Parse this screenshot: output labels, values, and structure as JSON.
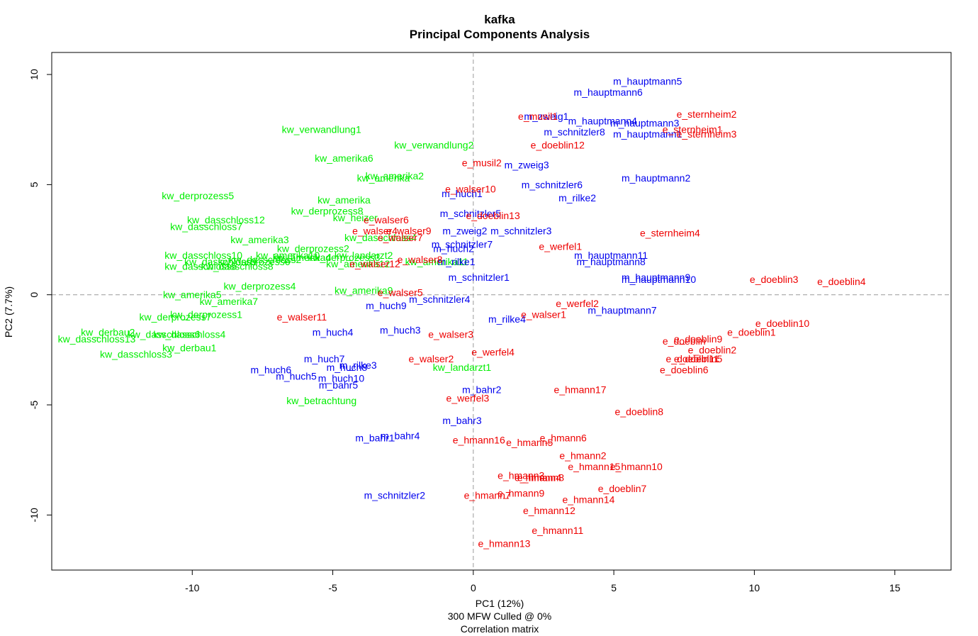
{
  "chart_data": {
    "type": "scatter",
    "title": "kafka",
    "subtitle": "Principal Components Analysis",
    "xlabel": "PC1 (12%)",
    "ylabel": "PC2 (7.7%)",
    "footnotes": [
      "300 MFW  Culled @ 0%",
      "Correlation matrix"
    ],
    "xlim": [
      -15,
      17
    ],
    "ylim": [
      -12.5,
      11
    ],
    "xticks": [
      -10,
      -5,
      0,
      5,
      10,
      15
    ],
    "yticks": [
      -10,
      -5,
      0,
      5,
      10
    ],
    "reference_lines": {
      "x": 0,
      "y": 0,
      "style": "dashed",
      "color": "#999999"
    },
    "grid": false,
    "legend": "none",
    "series": [
      {
        "group": "kw",
        "color": "#00ee00",
        "points": [
          {
            "label": "kw_verwandlung1",
            "x": -5.4,
            "y": 7.5
          },
          {
            "label": "kw_verwandlung2",
            "x": -1.4,
            "y": 6.8
          },
          {
            "label": "kw_amerika6",
            "x": -4.6,
            "y": 6.2
          },
          {
            "label": "kw_amerika2",
            "x": -2.8,
            "y": 5.4
          },
          {
            "label": "kw_amerika",
            "x": -3.2,
            "y": 5.3
          },
          {
            "label": "kw_derprozess5",
            "x": -9.8,
            "y": 4.5
          },
          {
            "label": "kw_amerika",
            "x": -4.6,
            "y": 4.3
          },
          {
            "label": "kw_derprozess8",
            "x": -5.2,
            "y": 3.8
          },
          {
            "label": "kw_heizer",
            "x": -4.2,
            "y": 3.5
          },
          {
            "label": "kw_dasschloss12",
            "x": -8.8,
            "y": 3.4
          },
          {
            "label": "kw_dasschloss7",
            "x": -9.5,
            "y": 3.1
          },
          {
            "label": "kw_dasschloss4",
            "x": -3.3,
            "y": 2.6
          },
          {
            "label": "kw_amerika3",
            "x": -7.6,
            "y": 2.5
          },
          {
            "label": "kw_derprozess2",
            "x": -5.7,
            "y": 2.1
          },
          {
            "label": "kw_landarzt2",
            "x": -3.9,
            "y": 1.8
          },
          {
            "label": "kw_dasschloss10",
            "x": -9.6,
            "y": 1.8
          },
          {
            "label": "kw_amerika10",
            "x": -6.6,
            "y": 1.8
          },
          {
            "label": "kw_derprozess3",
            "x": -4.6,
            "y": 1.7
          },
          {
            "label": "kw_dasschloss2",
            "x": -7.4,
            "y": 1.6
          },
          {
            "label": "kw_derprozess6",
            "x": -7.8,
            "y": 1.5
          },
          {
            "label": "kw_dasschloss9",
            "x": -9.0,
            "y": 1.5
          },
          {
            "label": "kw_amerika12",
            "x": -4.1,
            "y": 1.4
          },
          {
            "label": "kw_dasschloss5",
            "x": -9.7,
            "y": 1.3
          },
          {
            "label": "kw_dasschloss8",
            "x": -8.4,
            "y": 1.3
          },
          {
            "label": "kw_derprozess4",
            "x": -7.6,
            "y": 0.4
          },
          {
            "label": "kw_amerika9",
            "x": -3.9,
            "y": 0.2
          },
          {
            "label": "kw_amerika5",
            "x": -10.0,
            "y": 0.0
          },
          {
            "label": "kw_amerika7",
            "x": -8.7,
            "y": -0.3
          },
          {
            "label": "kw_derprozess1",
            "x": -9.5,
            "y": -0.9
          },
          {
            "label": "kw_derprozess7",
            "x": -10.6,
            "y": -1.0
          },
          {
            "label": "kw_derbau2",
            "x": -13.0,
            "y": -1.7
          },
          {
            "label": "kw_dasschloss6",
            "x": -11.0,
            "y": -1.8
          },
          {
            "label": "kw_dasschloss4",
            "x": -10.1,
            "y": -1.8
          },
          {
            "label": "kw_dasschloss13",
            "x": -13.4,
            "y": -2.0
          },
          {
            "label": "kw_derbau1",
            "x": -10.1,
            "y": -2.4
          },
          {
            "label": "kw_dasschloss3",
            "x": -12.0,
            "y": -2.7
          },
          {
            "label": "kw_landarzt1",
            "x": -0.4,
            "y": -3.3
          },
          {
            "label": "kw_betrachtung",
            "x": -5.4,
            "y": -4.8
          },
          {
            "label": "kw_amerika11",
            "x": -1.3,
            "y": 1.5
          },
          {
            "label": "kw_amerika4",
            "x": -6.1,
            "y": 1.7
          }
        ]
      },
      {
        "group": "m",
        "color": "#0000ee",
        "points": [
          {
            "label": "m_hauptmann5",
            "x": 6.2,
            "y": 9.7
          },
          {
            "label": "m_hauptmann6",
            "x": 4.8,
            "y": 9.2
          },
          {
            "label": "m_zweig1",
            "x": 2.6,
            "y": 8.1
          },
          {
            "label": "m_hauptmann4",
            "x": 4.6,
            "y": 7.9
          },
          {
            "label": "m_hauptmann3",
            "x": 6.1,
            "y": 7.8
          },
          {
            "label": "m_schnitzler8",
            "x": 3.6,
            "y": 7.4
          },
          {
            "label": "m_hauptmann1",
            "x": 6.2,
            "y": 7.3
          },
          {
            "label": "m_zweig3",
            "x": 1.9,
            "y": 5.9
          },
          {
            "label": "m_hauptmann2",
            "x": 6.5,
            "y": 5.3
          },
          {
            "label": "m_schnitzler6",
            "x": 2.8,
            "y": 5.0
          },
          {
            "label": "m_huch1",
            "x": -0.4,
            "y": 4.6
          },
          {
            "label": "m_rilke2",
            "x": 3.7,
            "y": 4.4
          },
          {
            "label": "m_schnitzler5",
            "x": -0.1,
            "y": 3.7
          },
          {
            "label": "m_zweig2",
            "x": -0.3,
            "y": 2.9
          },
          {
            "label": "m_schnitzler3",
            "x": 1.7,
            "y": 2.9
          },
          {
            "label": "m_schnitzler7",
            "x": -0.4,
            "y": 2.3
          },
          {
            "label": "m_huch2",
            "x": -0.7,
            "y": 2.1
          },
          {
            "label": "m_hauptmann11",
            "x": 4.9,
            "y": 1.8
          },
          {
            "label": "m_rilke1",
            "x": -0.6,
            "y": 1.5
          },
          {
            "label": "m_hauptmann8",
            "x": 4.9,
            "y": 1.5
          },
          {
            "label": "m_schnitzler1",
            "x": 0.2,
            "y": 0.8
          },
          {
            "label": "m_hauptmann9",
            "x": 6.5,
            "y": 0.8
          },
          {
            "label": "m_hauptmann10",
            "x": 6.6,
            "y": 0.7
          },
          {
            "label": "m_schnitzler4",
            "x": -1.2,
            "y": -0.2
          },
          {
            "label": "m_huch9",
            "x": -3.1,
            "y": -0.5
          },
          {
            "label": "m_hauptmann7",
            "x": 5.3,
            "y": -0.7
          },
          {
            "label": "m_rilke4",
            "x": 1.2,
            "y": -1.1
          },
          {
            "label": "m_huch3",
            "x": -2.6,
            "y": -1.6
          },
          {
            "label": "m_huch4",
            "x": -5.0,
            "y": -1.7
          },
          {
            "label": "m_huch7",
            "x": -5.3,
            "y": -2.9
          },
          {
            "label": "m_rilke3",
            "x": -4.1,
            "y": -3.2
          },
          {
            "label": "m_huch8",
            "x": -4.5,
            "y": -3.3
          },
          {
            "label": "m_huch6",
            "x": -7.2,
            "y": -3.4
          },
          {
            "label": "m_huch5",
            "x": -6.3,
            "y": -3.7
          },
          {
            "label": "m_huch10",
            "x": -4.7,
            "y": -3.8
          },
          {
            "label": "m_bahr5",
            "x": -4.8,
            "y": -4.1
          },
          {
            "label": "m_bahr2",
            "x": 0.3,
            "y": -4.3
          },
          {
            "label": "m_bahr3",
            "x": -0.4,
            "y": -5.7
          },
          {
            "label": "m_bahr1",
            "x": -3.5,
            "y": -6.5
          },
          {
            "label": "m_bahr4",
            "x": -2.6,
            "y": -6.4
          },
          {
            "label": "m_schnitzler2",
            "x": -2.8,
            "y": -9.1
          }
        ]
      },
      {
        "group": "e",
        "color": "#ee0000",
        "points": [
          {
            "label": "e_sternheim2",
            "x": 8.3,
            "y": 8.2
          },
          {
            "label": "e_musil1",
            "x": 2.3,
            "y": 8.1
          },
          {
            "label": "e_sternheim1",
            "x": 7.8,
            "y": 7.5
          },
          {
            "label": "e_sternheim3",
            "x": 8.3,
            "y": 7.3
          },
          {
            "label": "e_doeblin12",
            "x": 3.0,
            "y": 6.8
          },
          {
            "label": "e_musil2",
            "x": 0.3,
            "y": 6.0
          },
          {
            "label": "e_walser10",
            "x": -0.1,
            "y": 4.8
          },
          {
            "label": "e_doeblin13",
            "x": 0.7,
            "y": 3.6
          },
          {
            "label": "e_walser6",
            "x": -3.1,
            "y": 3.4
          },
          {
            "label": "e_sternheim4",
            "x": 7.0,
            "y": 2.8
          },
          {
            "label": "e_walser4",
            "x": -3.5,
            "y": 2.9
          },
          {
            "label": "e_walser9",
            "x": -2.3,
            "y": 2.9
          },
          {
            "label": "e_walser7",
            "x": -2.6,
            "y": 2.6
          },
          {
            "label": "e_werfel1",
            "x": 3.1,
            "y": 2.2
          },
          {
            "label": "e_walser8",
            "x": -1.9,
            "y": 1.6
          },
          {
            "label": "e_walser12",
            "x": -3.5,
            "y": 1.4
          },
          {
            "label": "e_doeblin3",
            "x": 10.7,
            "y": 0.7
          },
          {
            "label": "e_doeblin4",
            "x": 13.1,
            "y": 0.6
          },
          {
            "label": "e_walser5",
            "x": -2.6,
            "y": 0.1
          },
          {
            "label": "e_werfel2",
            "x": 3.7,
            "y": -0.4
          },
          {
            "label": "e_walser1",
            "x": 2.5,
            "y": -0.9
          },
          {
            "label": "e_walser11",
            "x": -6.1,
            "y": -1.0
          },
          {
            "label": "e_doeblin10",
            "x": 11.0,
            "y": -1.3
          },
          {
            "label": "e_doeblin1",
            "x": 9.9,
            "y": -1.7
          },
          {
            "label": "e_walser3",
            "x": -0.8,
            "y": -1.8
          },
          {
            "label": "e_doeblin9",
            "x": 8.0,
            "y": -2.0
          },
          {
            "label": "e_doeblin",
            "x": 7.5,
            "y": -2.1
          },
          {
            "label": "e_doeblin2",
            "x": 8.5,
            "y": -2.5
          },
          {
            "label": "e_werfel4",
            "x": 0.7,
            "y": -2.6
          },
          {
            "label": "e_doeblin5",
            "x": 8.0,
            "y": -2.9
          },
          {
            "label": "e_doeblin11",
            "x": 7.8,
            "y": -2.9
          },
          {
            "label": "e_walser2",
            "x": -1.5,
            "y": -2.9
          },
          {
            "label": "e_doeblin6",
            "x": 7.5,
            "y": -3.4
          },
          {
            "label": "e_hmann17",
            "x": 3.8,
            "y": -4.3
          },
          {
            "label": "e_werfel3",
            "x": -0.2,
            "y": -4.7
          },
          {
            "label": "e_doeblin8",
            "x": 5.9,
            "y": -5.3
          },
          {
            "label": "e_hmann6",
            "x": 3.2,
            "y": -6.5
          },
          {
            "label": "e_hmann16",
            "x": 0.2,
            "y": -6.6
          },
          {
            "label": "e_hmann5",
            "x": 2.0,
            "y": -6.7
          },
          {
            "label": "e_hmann2",
            "x": 3.9,
            "y": -7.3
          },
          {
            "label": "e_hmann10",
            "x": 5.8,
            "y": -7.8
          },
          {
            "label": "e_hmann15",
            "x": 4.3,
            "y": -7.8
          },
          {
            "label": "e_hmann3",
            "x": 1.7,
            "y": -8.2
          },
          {
            "label": "e_hmann4",
            "x": 2.3,
            "y": -8.3
          },
          {
            "label": "e_hmann8",
            "x": 2.4,
            "y": -8.3
          },
          {
            "label": "e_doeblin7",
            "x": 5.3,
            "y": -8.8
          },
          {
            "label": "e_hmann9",
            "x": 1.7,
            "y": -9.0
          },
          {
            "label": "e_hmann7",
            "x": 0.5,
            "y": -9.1
          },
          {
            "label": "e_hmann14",
            "x": 4.1,
            "y": -9.3
          },
          {
            "label": "e_hmann12",
            "x": 2.7,
            "y": -9.8
          },
          {
            "label": "e_hmann11",
            "x": 3.0,
            "y": -10.7
          },
          {
            "label": "e_hmann13",
            "x": 1.1,
            "y": -11.3
          }
        ]
      }
    ]
  }
}
